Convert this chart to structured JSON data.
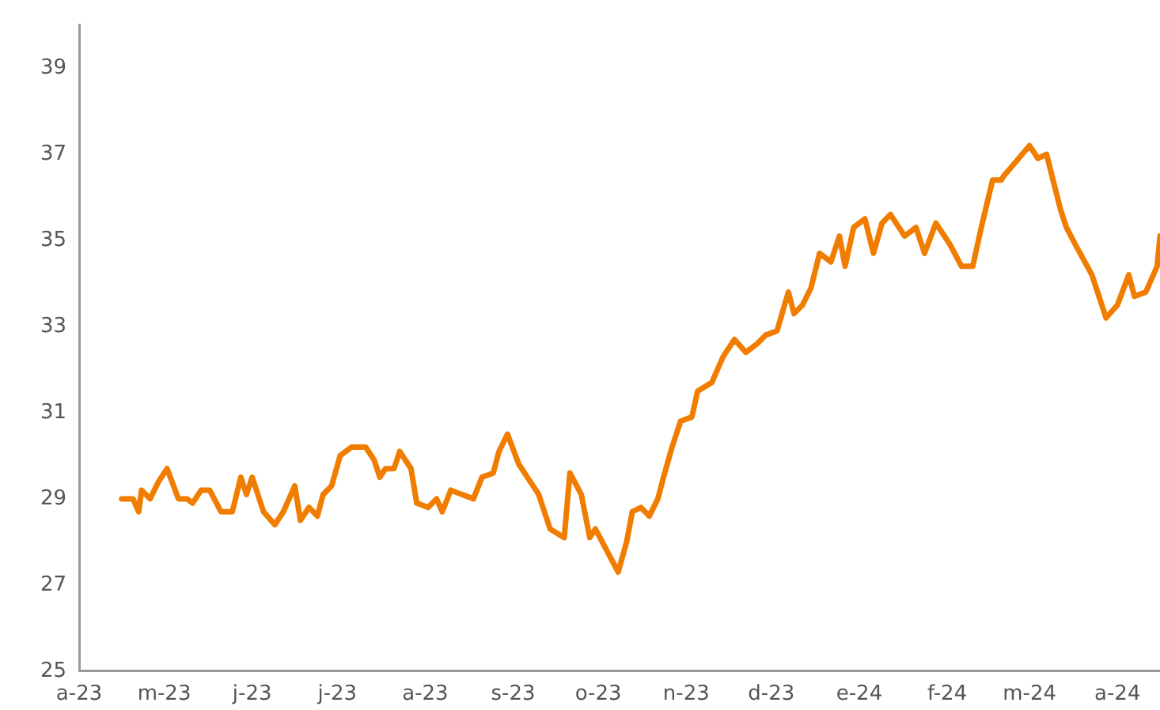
{
  "chart_data": {
    "type": "line",
    "x": [
      "2023-04-16",
      "2023-04-20",
      "2023-04-22",
      "2023-04-23",
      "2023-04-26",
      "2023-04-29",
      "2023-05-02",
      "2023-05-06",
      "2023-05-09",
      "2023-05-11",
      "2023-05-14",
      "2023-05-17",
      "2023-05-21",
      "2023-05-25",
      "2023-05-28",
      "2023-05-30",
      "2023-06-01",
      "2023-06-05",
      "2023-06-09",
      "2023-06-12",
      "2023-06-16",
      "2023-06-18",
      "2023-06-21",
      "2023-06-24",
      "2023-06-26",
      "2023-06-29",
      "2023-07-02",
      "2023-07-06",
      "2023-07-11",
      "2023-07-14",
      "2023-07-16",
      "2023-07-18",
      "2023-07-21",
      "2023-07-23",
      "2023-07-27",
      "2023-07-29",
      "2023-08-02",
      "2023-08-05",
      "2023-08-07",
      "2023-08-10",
      "2023-08-14",
      "2023-08-18",
      "2023-08-21",
      "2023-08-25",
      "2023-08-27",
      "2023-08-30",
      "2023-09-03",
      "2023-09-06",
      "2023-09-10",
      "2023-09-14",
      "2023-09-19",
      "2023-09-21",
      "2023-09-25",
      "2023-09-28",
      "2023-09-30",
      "2023-10-04",
      "2023-10-08",
      "2023-10-11",
      "2023-10-13",
      "2023-10-16",
      "2023-10-19",
      "2023-10-22",
      "2023-10-24",
      "2023-10-27",
      "2023-10-30",
      "2023-11-03",
      "2023-11-05",
      "2023-11-10",
      "2023-11-14",
      "2023-11-18",
      "2023-11-22",
      "2023-11-26",
      "2023-11-29",
      "2023-12-03",
      "2023-12-07",
      "2023-12-09",
      "2023-12-12",
      "2023-12-15",
      "2023-12-18",
      "2023-12-22",
      "2023-12-25",
      "2023-12-27",
      "2023-12-30",
      "2024-01-03",
      "2024-01-06",
      "2024-01-09",
      "2024-01-12",
      "2024-01-17",
      "2024-01-21",
      "2024-01-24",
      "2024-01-28",
      "2024-02-02",
      "2024-02-06",
      "2024-02-10",
      "2024-02-13",
      "2024-02-17",
      "2024-02-20",
      "2024-02-21",
      "2024-03-01",
      "2024-03-04",
      "2024-03-07",
      "2024-03-12",
      "2024-03-14",
      "2024-03-18",
      "2024-03-23",
      "2024-03-28",
      "2024-04-01",
      "2024-04-05",
      "2024-04-07",
      "2024-04-11",
      "2024-04-15",
      "2024-04-16"
    ],
    "series": [
      {
        "color": "#f07d00",
        "values": [
          29.0,
          29.0,
          28.7,
          29.2,
          29.0,
          29.4,
          29.7,
          29.0,
          29.0,
          28.9,
          29.2,
          29.2,
          28.7,
          28.7,
          29.5,
          29.1,
          29.5,
          28.7,
          28.4,
          28.7,
          29.3,
          28.5,
          28.8,
          28.6,
          29.1,
          29.3,
          30.0,
          30.2,
          30.2,
          29.9,
          29.5,
          29.7,
          29.7,
          30.1,
          29.7,
          28.9,
          28.8,
          29.0,
          28.7,
          29.2,
          29.1,
          29.0,
          29.5,
          29.6,
          30.1,
          30.5,
          29.8,
          29.5,
          29.1,
          28.3,
          28.1,
          29.6,
          29.1,
          28.1,
          28.3,
          27.8,
          27.3,
          28.0,
          28.7,
          28.8,
          28.6,
          29.0,
          29.5,
          30.2,
          30.8,
          30.9,
          31.5,
          31.7,
          32.3,
          32.7,
          32.4,
          32.6,
          32.8,
          32.9,
          33.8,
          33.3,
          33.5,
          33.9,
          34.7,
          34.5,
          35.1,
          34.4,
          35.3,
          35.5,
          34.7,
          35.4,
          35.6,
          35.1,
          35.3,
          34.7,
          35.4,
          34.9,
          34.4,
          34.4,
          35.3,
          36.4,
          36.4,
          36.5,
          37.2,
          36.9,
          37.0,
          35.7,
          35.3,
          34.8,
          34.2,
          33.2,
          33.5,
          34.2,
          33.7,
          33.8,
          34.4,
          35.1
        ]
      }
    ],
    "xlim": [
      "2023-04-01",
      "2024-04-16"
    ],
    "xticks": [
      {
        "value": "2023-04-01",
        "label": "a-23"
      },
      {
        "value": "2023-05-01",
        "label": "m-23"
      },
      {
        "value": "2023-06-01",
        "label": "j-23"
      },
      {
        "value": "2023-07-01",
        "label": "j-23"
      },
      {
        "value": "2023-08-01",
        "label": "a-23"
      },
      {
        "value": "2023-09-01",
        "label": "s-23"
      },
      {
        "value": "2023-10-01",
        "label": "o-23"
      },
      {
        "value": "2023-11-01",
        "label": "n-23"
      },
      {
        "value": "2023-12-01",
        "label": "d-23"
      },
      {
        "value": "2024-01-01",
        "label": "e-24"
      },
      {
        "value": "2024-02-01",
        "label": "f-24"
      },
      {
        "value": "2024-03-01",
        "label": "m-24"
      },
      {
        "value": "2024-04-01",
        "label": "a-24"
      }
    ],
    "ylim": [
      25,
      40
    ],
    "yticks": [
      25,
      27,
      29,
      31,
      33,
      35,
      37,
      39
    ],
    "grid": false,
    "legend": false,
    "marker": "none",
    "line_style": "solid"
  }
}
